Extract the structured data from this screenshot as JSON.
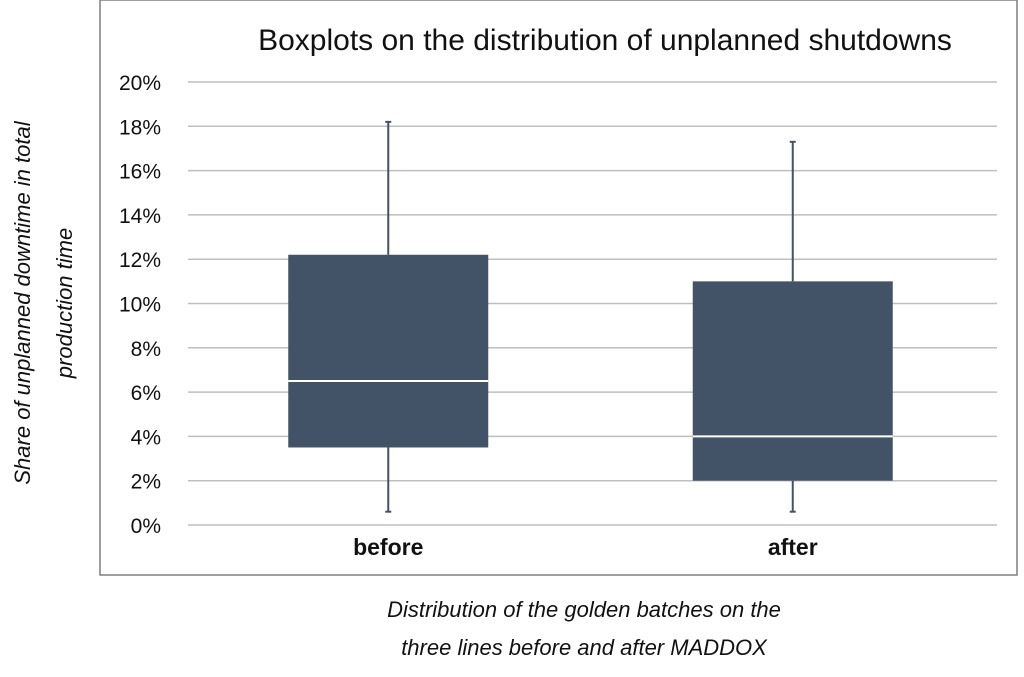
{
  "chart_data": {
    "type": "boxplot",
    "title": "Boxplots on the distribution of unplanned shutdowns",
    "ylabel_lines": [
      "Share of unplanned downtime in total",
      "production time"
    ],
    "xlabel_lines": [
      "Distribution of the golden batches on the",
      "three lines before and after MADDOX"
    ],
    "ylim": [
      0,
      20
    ],
    "yticks": [
      0,
      2,
      4,
      6,
      8,
      10,
      12,
      14,
      16,
      18,
      20
    ],
    "ytick_labels": [
      "0%",
      "2%",
      "4%",
      "6%",
      "8%",
      "10%",
      "12%",
      "14%",
      "16%",
      "18%",
      "20%"
    ],
    "grid": true,
    "categories": [
      "before",
      "after"
    ],
    "boxes": [
      {
        "category": "before",
        "whisker_low": 0.6,
        "q1": 3.5,
        "median": 6.5,
        "q3": 12.2,
        "whisker_high": 18.2
      },
      {
        "category": "after",
        "whisker_low": 0.6,
        "q1": 2.0,
        "median": 4.0,
        "q3": 11.0,
        "whisker_high": 17.3
      }
    ],
    "colors": {
      "box": "#435367",
      "median": "#ffffff",
      "whisker": "#435367",
      "grid": "#bfbfbf",
      "frame": "#7f7f7f"
    }
  }
}
